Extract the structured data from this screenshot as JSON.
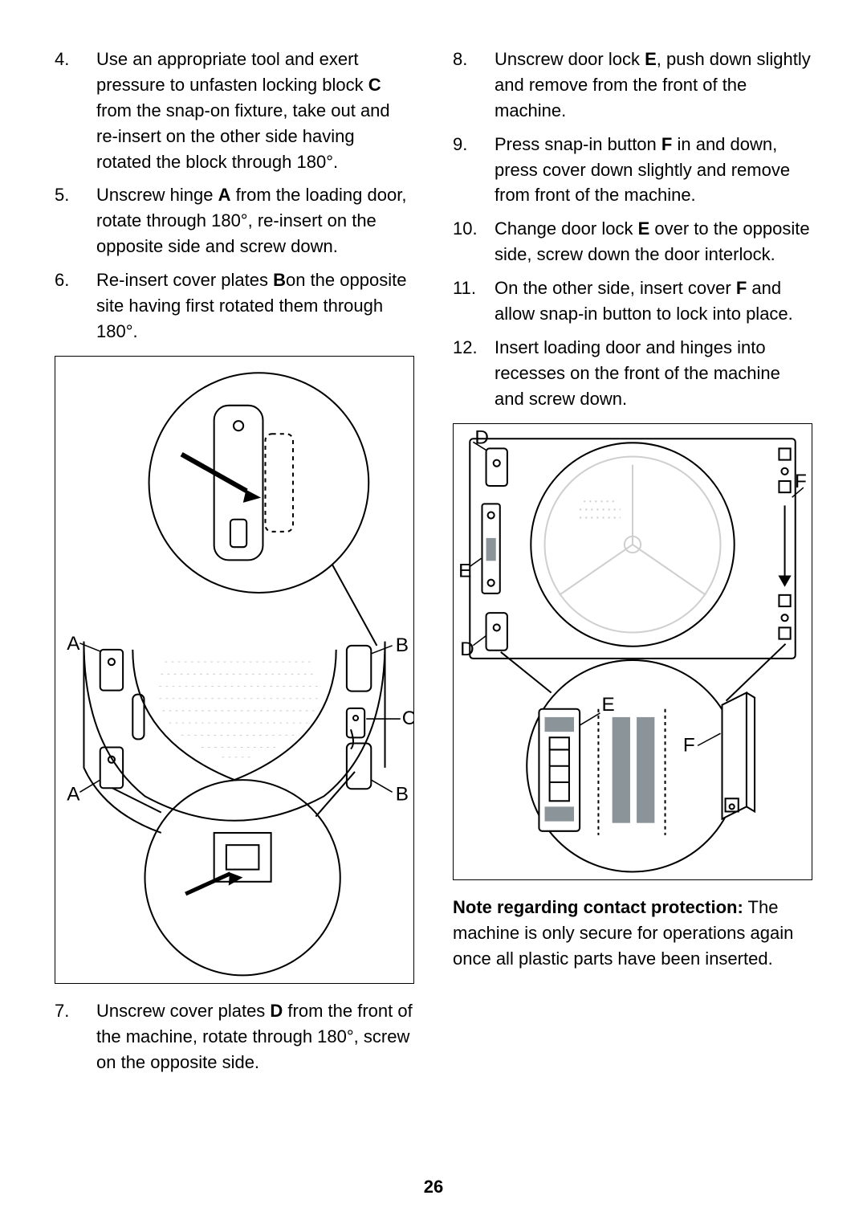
{
  "left": {
    "items": [
      {
        "num": "4.",
        "parts": [
          "Use an appropriate tool and exert pressure to unfasten locking block ",
          {
            "b": "C"
          },
          " from the snap-on fixture, take out and re-insert on the other side having rotated the block through 180°."
        ]
      },
      {
        "num": "5.",
        "parts": [
          "Unscrew hinge ",
          {
            "b": "A"
          },
          " from the loading door, rotate through 180°, re-insert on the opposite side and screw down."
        ]
      },
      {
        "num": "6.",
        "parts": [
          "Re-insert cover plates ",
          {
            "b": "B"
          },
          "on the opposite site having first rotated them through 180°."
        ]
      }
    ],
    "items2": [
      {
        "num": "7.",
        "parts": [
          "Unscrew cover plates ",
          {
            "b": "D"
          },
          " from the front of the machine, rotate through 180°, screw on the opposite side."
        ]
      }
    ]
  },
  "right": {
    "items": [
      {
        "num": "8.",
        "parts": [
          "Unscrew door lock ",
          {
            "b": "E"
          },
          ", push down slightly and remove from the front of the machine."
        ]
      },
      {
        "num": "9.",
        "parts": [
          "Press snap-in button ",
          {
            "b": "F"
          },
          " in and down, press cover down slightly and remove from front of the machine."
        ]
      },
      {
        "num": "10.",
        "parts": [
          "Change door lock ",
          {
            "b": "E"
          },
          " over to the opposite side, screw down the door interlock."
        ]
      },
      {
        "num": "11.",
        "parts": [
          "On the other side, insert cover ",
          {
            "b": "F"
          },
          " and allow snap-in button to lock into place."
        ]
      },
      {
        "num": "12.",
        "parts": [
          "Insert loading door and hinges into recesses on the front of the machine and screw down."
        ]
      }
    ]
  },
  "note": {
    "heading": "Note regarding contact protection:",
    "body": "The machine is only secure for operations again once all plastic parts have been inserted."
  },
  "page": "26",
  "diagram1": {
    "labels": {
      "A1": "A",
      "A2": "A",
      "B1": "B",
      "B2": "B",
      "C": "C"
    },
    "stroke": "#000000",
    "fill_light": "#ffffff",
    "fill_grey": "#8a9499"
  },
  "diagram2": {
    "labels": {
      "D1": "D",
      "D2": "D",
      "E1": "E",
      "E2": "E",
      "F1": "F",
      "F2": "F"
    },
    "stroke": "#000000",
    "fill_grey": "#8a9499",
    "fill_dark": "#6b777c"
  }
}
